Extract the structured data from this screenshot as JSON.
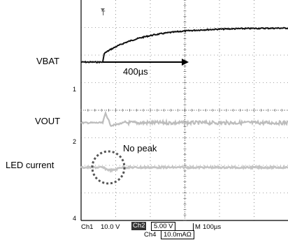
{
  "labels": {
    "vbat": "VBAT",
    "vout": "VOUT",
    "led_current": "LED current"
  },
  "annotations": {
    "time_span": "400µs",
    "no_peak": "No peak"
  },
  "markers": {
    "trigger": "T",
    "ch1": "1",
    "ch2": "2",
    "ch4": "4"
  },
  "status_bar": {
    "ch1_label": "Ch1",
    "ch1_scale": "10.0 V",
    "ch2_label": "Ch2",
    "ch2_scale": "5.00 V",
    "ch4_label": "Ch4",
    "ch4_scale": "10.0mAΩ",
    "timebase_label": "M",
    "timebase_value": "100µs"
  },
  "colors": {
    "grid": "#444444",
    "vbat_trace": "#111111",
    "vout_trace": "#bdbdbd",
    "led_trace": "#c4c4c4",
    "circle": "#555555"
  },
  "chart_data": {
    "type": "line",
    "x_unit": "µs",
    "time_per_division": "100µs",
    "xlim": [
      -60,
      440
    ],
    "series": [
      {
        "name": "VBAT",
        "shape": "step-then-exponential rise",
        "x": [
          -60,
          0,
          0,
          50,
          100,
          200,
          300,
          440
        ],
        "values": [
          0,
          0,
          0.9,
          1.8,
          2.5,
          3.1,
          3.3,
          3.4
        ]
      },
      {
        "name": "VOUT",
        "shape": "flat with small transient dip at step",
        "x": [
          -60,
          0,
          5,
          15,
          30,
          60,
          440
        ],
        "values": [
          0,
          0,
          0.6,
          -0.25,
          -0.1,
          0,
          0
        ]
      },
      {
        "name": "LED current",
        "shape": "flat, no peak",
        "x": [
          -60,
          0,
          20,
          50,
          440
        ],
        "values": [
          0,
          0,
          -0.1,
          0,
          0
        ]
      }
    ]
  }
}
